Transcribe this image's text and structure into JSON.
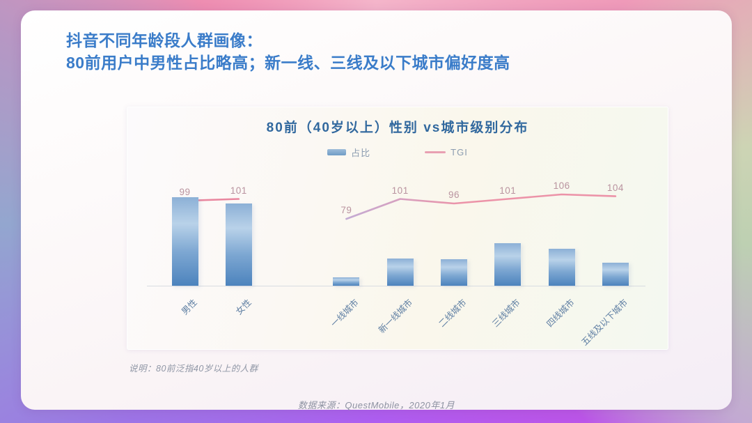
{
  "header": {
    "title_line1": "抖音不同年龄段人群画像：",
    "title_line2": "80前用户中男性占比略高；新一线、三线及以下城市偏好度高"
  },
  "chart": {
    "title": "80前（40岁以上）性别 vs城市级别分布",
    "legend": [
      {
        "label": "占比",
        "type": "bar",
        "color": "#7fa8cb"
      },
      {
        "label": "TGI",
        "type": "line",
        "color": "#e8a0b2"
      }
    ]
  },
  "chart_data": {
    "type": "bar+line",
    "title": "80前（40岁以上）性别 vs城市级别分布",
    "y_axis": "hidden (no tick labels shown; 占比 bar values estimated from bar heights, %)",
    "legend_position": "top-center",
    "groups": [
      {
        "name": "性别",
        "categories": [
          "男性",
          "女性"
        ],
        "series": [
          {
            "name": "占比",
            "unit": "%",
            "estimated": true,
            "values": [
              52,
              48
            ]
          },
          {
            "name": "TGI",
            "values": [
              99,
              101
            ]
          }
        ]
      },
      {
        "name": "城市级别",
        "categories": [
          "一线城市",
          "新一线城市",
          "二线城市",
          "三线城市",
          "四线城市",
          "五线及以下城市"
        ],
        "series": [
          {
            "name": "占比",
            "unit": "%",
            "estimated": true,
            "values": [
              5,
              16,
              15.5,
              25,
              21.5,
              13.5
            ]
          },
          {
            "name": "TGI",
            "values": [
              79,
              101,
              96,
              101,
              106,
              104
            ]
          }
        ]
      }
    ]
  },
  "footnote": "说明：80前泛指40岁以上的人群",
  "source": "数据来源：QuestMobile，2020年1月",
  "colors": {
    "headline_blue": "#3a7cc9",
    "chart_title_blue": "#31689e",
    "bar_gradient_top": "#8cb0d6",
    "bar_gradient_light": "#b9d2e9",
    "bar_gradient_bottom": "#4c83bd",
    "tgi_line_pink": "#ea93a8",
    "tgi_label_gray_pink": "#b9939f",
    "axis_label_blue_gray": "#5f7fa3",
    "frame_pink": "#ee8db1",
    "frame_green": "#bed0b2",
    "frame_purple": "#b55ae8",
    "frame_blue": "#93a6cf"
  }
}
